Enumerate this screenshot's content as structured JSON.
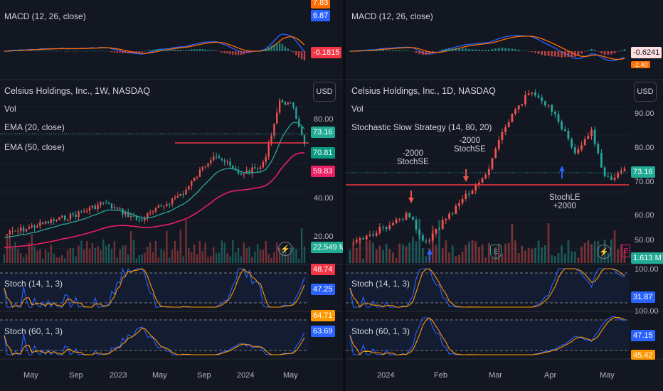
{
  "left": {
    "macd_label": "MACD (12, 26, close)",
    "macd_tags": [
      "7.83",
      "6.87",
      "-0.1815"
    ],
    "title": "Celsius Holdings, Inc., 1W, NASDAQ",
    "vol_label": "Vol",
    "ema20_label": "EMA (20, close)",
    "ema50_label": "EMA (50, close)",
    "currency": "USD",
    "price_ticks": [
      "80.00",
      "40.00",
      "20.00"
    ],
    "price_tags": [
      "73.16",
      "70.81",
      "59.83",
      "22.549 M"
    ],
    "stoch1_label": "Stoch (14, 1, 3)",
    "stoch1_tags": [
      "48.74",
      "47.25"
    ],
    "stoch2_label": "Stoch (60, 1, 3)",
    "stoch2_tags": [
      "64.71",
      "63.69"
    ],
    "x_ticks": [
      "May",
      "Sep",
      "2023",
      "May",
      "Sep",
      "2024",
      "May"
    ]
  },
  "right": {
    "macd_label": "MACD (12, 26, close)",
    "macd_tags": [
      "-0.6241",
      "-2.40"
    ],
    "title": "Celsius Holdings, Inc., 1D, NASDAQ",
    "vol_label": "Vol",
    "strategy_label": "Stochastic Slow Strategy (14, 80, 20)",
    "currency": "USD",
    "price_ticks": [
      "90.00",
      "80.00",
      "70.00",
      "60.00",
      "50.00"
    ],
    "price_tags": [
      "73.16",
      "1.613 M"
    ],
    "annotations": [
      {
        "line1": "-2000",
        "line2": "StochSE"
      },
      {
        "line1": "-2000",
        "line2": "StochSE"
      },
      {
        "line1": "StochLE",
        "line2": "+2000"
      }
    ],
    "earnings_label": "E",
    "stoch1_label": "Stoch (14, 1, 3)",
    "stoch1_ticks": [
      "100.00",
      "100.00"
    ],
    "stoch1_tags": [
      "31.87"
    ],
    "stoch2_label": "Stoch (60, 1, 3)",
    "stoch2_tags": [
      "47.15",
      "45.42"
    ],
    "x_ticks": [
      "2024",
      "Feb",
      "Mar",
      "Apr",
      "May"
    ]
  },
  "colors": {
    "up": "#26a69a",
    "down": "#ef5350",
    "macd_line": "#2962ff",
    "signal_line": "#ff6d00",
    "ema20": "#26a69a",
    "ema50": "#e91e63",
    "stoch_k": "#2962ff",
    "stoch_d": "#ff9800",
    "hline": "#f23645"
  }
}
